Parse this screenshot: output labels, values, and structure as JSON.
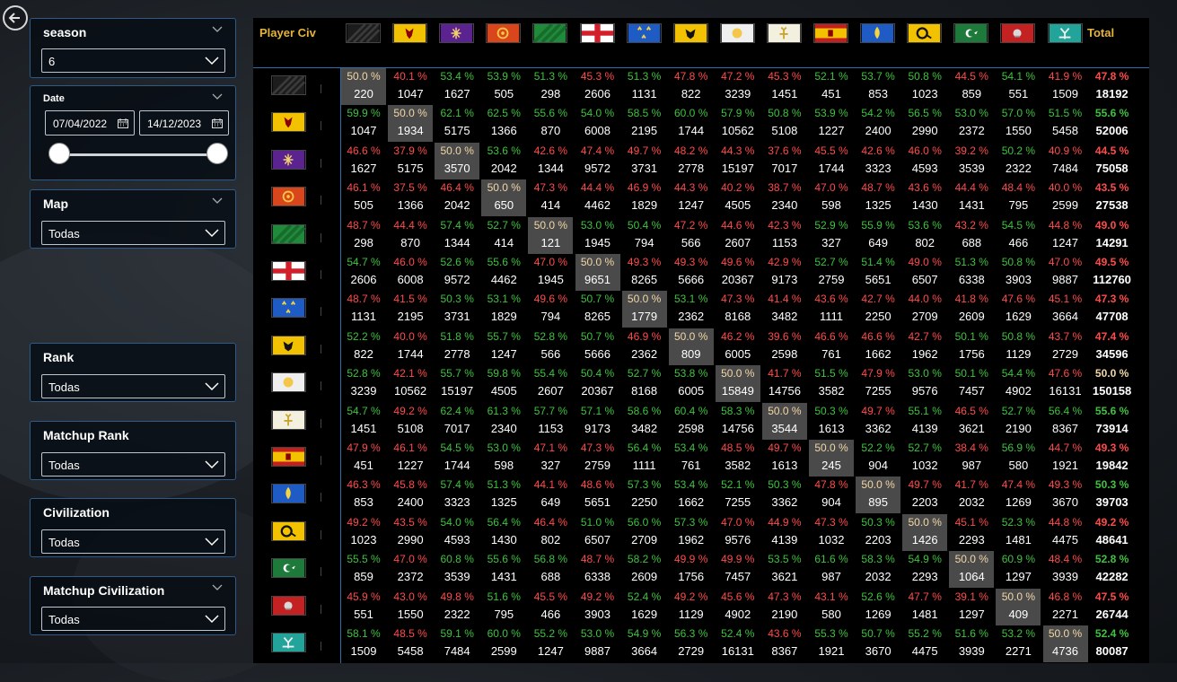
{
  "colors": {
    "win": "#3fc23f",
    "lose": "#ff4b4b",
    "even": "#f2d7a6",
    "accent": "#e6b43a"
  },
  "filters": {
    "season": {
      "title": "season",
      "value": "6"
    },
    "date": {
      "title": "Date",
      "start": "07/04/2022",
      "end": "14/12/2023"
    },
    "map": {
      "title": "Map",
      "value": "Todas"
    },
    "rank": {
      "title": "Rank",
      "value": "Todas"
    },
    "matchup_rank": {
      "title": "Matchup Rank",
      "value": "Todas"
    },
    "civilization": {
      "title": "Civilization",
      "value": "Todas"
    },
    "matchup_civilization": {
      "title": "Matchup Civilization",
      "value": "Todas"
    }
  },
  "matrix": {
    "header_label": "Player Civ",
    "total_label": "Total",
    "civs": [
      "Abbasid-black",
      "Holy Roman Empire",
      "Byzantines",
      "Chinese",
      "Delhi",
      "English",
      "French",
      "HRE-eagle",
      "Ayyubids",
      "Jeanne",
      "Malians",
      "Mongols",
      "Order of the Dragon",
      "Ottomans",
      "Rus",
      "Japanese"
    ],
    "rows": [
      {
        "pct": [
          "50.0 %",
          "40.1 %",
          "53.4 %",
          "53.9 %",
          "51.3 %",
          "45.3 %",
          "51.3 %",
          "47.8 %",
          "47.2 %",
          "45.3 %",
          "52.1 %",
          "53.7 %",
          "50.8 %",
          "44.5 %",
          "54.1 %",
          "41.9 %"
        ],
        "cnt": [
          "220",
          "1047",
          "1627",
          "505",
          "298",
          "2606",
          "1131",
          "822",
          "3239",
          "1451",
          "451",
          "853",
          "1023",
          "859",
          "551",
          "1509"
        ],
        "total_pct": "47.8 %",
        "total_cnt": "18192"
      },
      {
        "pct": [
          "59.9 %",
          "50.0 %",
          "62.1 %",
          "62.5 %",
          "55.6 %",
          "54.0 %",
          "58.5 %",
          "60.0 %",
          "57.9 %",
          "50.8 %",
          "53.9 %",
          "54.2 %",
          "56.5 %",
          "53.0 %",
          "57.0 %",
          "51.5 %"
        ],
        "cnt": [
          "1047",
          "1934",
          "5175",
          "1366",
          "870",
          "6008",
          "2195",
          "1744",
          "10562",
          "5108",
          "1227",
          "2400",
          "2990",
          "2372",
          "1550",
          "5458"
        ],
        "total_pct": "55.6 %",
        "total_cnt": "52006"
      },
      {
        "pct": [
          "46.6 %",
          "37.9 %",
          "50.0 %",
          "53.6 %",
          "42.6 %",
          "47.4 %",
          "49.7 %",
          "48.2 %",
          "44.3 %",
          "37.6 %",
          "45.5 %",
          "42.6 %",
          "46.0 %",
          "39.2 %",
          "50.2 %",
          "40.9 %"
        ],
        "cnt": [
          "1627",
          "5175",
          "3570",
          "2042",
          "1344",
          "9572",
          "3731",
          "2778",
          "15197",
          "7017",
          "1744",
          "3323",
          "4593",
          "3539",
          "2322",
          "7484"
        ],
        "total_pct": "44.5 %",
        "total_cnt": "75058"
      },
      {
        "pct": [
          "46.1 %",
          "37.5 %",
          "46.4 %",
          "50.0 %",
          "47.3 %",
          "44.4 %",
          "46.9 %",
          "44.3 %",
          "40.2 %",
          "38.7 %",
          "47.0 %",
          "48.7 %",
          "43.6 %",
          "44.4 %",
          "48.4 %",
          "40.0 %"
        ],
        "cnt": [
          "505",
          "1366",
          "2042",
          "650",
          "414",
          "4462",
          "1829",
          "1247",
          "4505",
          "2340",
          "598",
          "1325",
          "1430",
          "1431",
          "795",
          "2599"
        ],
        "total_pct": "43.5 %",
        "total_cnt": "27538"
      },
      {
        "pct": [
          "48.7 %",
          "44.4 %",
          "57.4 %",
          "52.7 %",
          "50.0 %",
          "53.0 %",
          "50.4 %",
          "47.2 %",
          "44.6 %",
          "42.3 %",
          "52.9 %",
          "55.9 %",
          "53.6 %",
          "43.2 %",
          "54.5 %",
          "44.8 %"
        ],
        "cnt": [
          "298",
          "870",
          "1344",
          "414",
          "121",
          "1945",
          "794",
          "566",
          "2607",
          "1153",
          "327",
          "649",
          "802",
          "688",
          "466",
          "1247"
        ],
        "total_pct": "49.0 %",
        "total_cnt": "14291"
      },
      {
        "pct": [
          "54.7 %",
          "46.0 %",
          "52.6 %",
          "55.6 %",
          "47.0 %",
          "50.0 %",
          "49.3 %",
          "49.3 %",
          "49.6 %",
          "42.9 %",
          "52.7 %",
          "51.4 %",
          "49.0 %",
          "51.3 %",
          "50.8 %",
          "47.0 %"
        ],
        "cnt": [
          "2606",
          "6008",
          "9572",
          "4462",
          "1945",
          "9651",
          "8265",
          "5666",
          "20367",
          "9173",
          "2759",
          "5651",
          "6507",
          "6338",
          "3903",
          "9887"
        ],
        "total_pct": "49.5 %",
        "total_cnt": "112760"
      },
      {
        "pct": [
          "48.7 %",
          "41.5 %",
          "50.3 %",
          "53.1 %",
          "49.6 %",
          "50.7 %",
          "50.0 %",
          "53.1 %",
          "47.3 %",
          "41.4 %",
          "43.6 %",
          "42.7 %",
          "44.0 %",
          "41.8 %",
          "47.6 %",
          "45.1 %"
        ],
        "cnt": [
          "1131",
          "2195",
          "3731",
          "1829",
          "794",
          "8265",
          "1779",
          "2362",
          "8168",
          "3482",
          "1111",
          "2250",
          "2709",
          "2609",
          "1629",
          "3664"
        ],
        "total_pct": "47.3 %",
        "total_cnt": "47708"
      },
      {
        "pct": [
          "52.2 %",
          "40.0 %",
          "51.8 %",
          "55.7 %",
          "52.8 %",
          "50.7 %",
          "46.9 %",
          "50.0 %",
          "46.2 %",
          "39.6 %",
          "46.6 %",
          "46.6 %",
          "42.7 %",
          "50.1 %",
          "50.8 %",
          "43.7 %"
        ],
        "cnt": [
          "822",
          "1744",
          "2778",
          "1247",
          "566",
          "5666",
          "2362",
          "809",
          "6005",
          "2598",
          "761",
          "1662",
          "1962",
          "1756",
          "1129",
          "2729"
        ],
        "total_pct": "47.4 %",
        "total_cnt": "34596"
      },
      {
        "pct": [
          "52.8 %",
          "42.1 %",
          "55.7 %",
          "59.8 %",
          "55.4 %",
          "50.4 %",
          "52.7 %",
          "53.8 %",
          "50.0 %",
          "41.7 %",
          "51.5 %",
          "47.9 %",
          "53.0 %",
          "50.1 %",
          "54.4 %",
          "47.6 %"
        ],
        "cnt": [
          "3239",
          "10562",
          "15197",
          "4505",
          "2607",
          "20367",
          "8168",
          "6005",
          "15849",
          "14756",
          "3582",
          "7255",
          "9576",
          "7457",
          "4902",
          "16131"
        ],
        "total_pct": "50.0 %",
        "total_cnt": "150158"
      },
      {
        "pct": [
          "54.7 %",
          "49.2 %",
          "62.4 %",
          "61.3 %",
          "57.7 %",
          "57.1 %",
          "58.6 %",
          "60.4 %",
          "58.3 %",
          "50.0 %",
          "50.3 %",
          "49.7 %",
          "55.1 %",
          "46.5 %",
          "52.7 %",
          "56.4 %"
        ],
        "cnt": [
          "1451",
          "5108",
          "7017",
          "2340",
          "1153",
          "9173",
          "3482",
          "2598",
          "14756",
          "3544",
          "1613",
          "3362",
          "4139",
          "3621",
          "2190",
          "8367"
        ],
        "total_pct": "55.6 %",
        "total_cnt": "73914"
      },
      {
        "pct": [
          "47.9 %",
          "46.1 %",
          "54.5 %",
          "53.0 %",
          "47.1 %",
          "47.3 %",
          "56.4 %",
          "53.4 %",
          "48.5 %",
          "49.7 %",
          "50.0 %",
          "52.2 %",
          "52.7 %",
          "38.4 %",
          "56.9 %",
          "44.7 %"
        ],
        "cnt": [
          "451",
          "1227",
          "1744",
          "598",
          "327",
          "2759",
          "1111",
          "761",
          "3582",
          "1613",
          "245",
          "904",
          "1032",
          "987",
          "580",
          "1921"
        ],
        "total_pct": "49.3 %",
        "total_cnt": "19842"
      },
      {
        "pct": [
          "46.3 %",
          "45.8 %",
          "57.4 %",
          "51.3 %",
          "44.1 %",
          "48.6 %",
          "57.3 %",
          "53.4 %",
          "52.1 %",
          "50.3 %",
          "47.8 %",
          "50.0 %",
          "49.7 %",
          "41.7 %",
          "47.4 %",
          "49.3 %"
        ],
        "cnt": [
          "853",
          "2400",
          "3323",
          "1325",
          "649",
          "5651",
          "2250",
          "1662",
          "7255",
          "3362",
          "904",
          "895",
          "2203",
          "2032",
          "1269",
          "3670"
        ],
        "total_pct": "50.3 %",
        "total_cnt": "39703"
      },
      {
        "pct": [
          "49.2 %",
          "43.5 %",
          "54.0 %",
          "56.4 %",
          "46.4 %",
          "51.0 %",
          "56.0 %",
          "57.3 %",
          "47.0 %",
          "44.9 %",
          "47.3 %",
          "50.3 %",
          "50.0 %",
          "45.1 %",
          "52.3 %",
          "44.8 %"
        ],
        "cnt": [
          "1023",
          "2990",
          "4593",
          "1430",
          "802",
          "6507",
          "2709",
          "1962",
          "9576",
          "4139",
          "1032",
          "2203",
          "1426",
          "2293",
          "1481",
          "4475"
        ],
        "total_pct": "49.2 %",
        "total_cnt": "48641"
      },
      {
        "pct": [
          "55.5 %",
          "47.0 %",
          "60.8 %",
          "55.6 %",
          "56.8 %",
          "48.7 %",
          "58.2 %",
          "49.9 %",
          "49.9 %",
          "53.5 %",
          "61.6 %",
          "58.3 %",
          "54.9 %",
          "50.0 %",
          "60.9 %",
          "48.4 %"
        ],
        "cnt": [
          "859",
          "2372",
          "3539",
          "1431",
          "688",
          "6338",
          "2609",
          "1756",
          "7457",
          "3621",
          "987",
          "2032",
          "2293",
          "1064",
          "1297",
          "3939"
        ],
        "total_pct": "52.8 %",
        "total_cnt": "42282"
      },
      {
        "pct": [
          "45.9 %",
          "43.0 %",
          "49.8 %",
          "51.6 %",
          "45.5 %",
          "49.2 %",
          "52.4 %",
          "49.2 %",
          "45.6 %",
          "47.3 %",
          "43.1 %",
          "52.6 %",
          "47.7 %",
          "39.1 %",
          "50.0 %",
          "46.8 %"
        ],
        "cnt": [
          "551",
          "1550",
          "2322",
          "795",
          "466",
          "3903",
          "1629",
          "1129",
          "4902",
          "2190",
          "580",
          "1269",
          "1481",
          "1297",
          "409",
          "2271"
        ],
        "total_pct": "47.5 %",
        "total_cnt": "26744"
      },
      {
        "pct": [
          "58.1 %",
          "48.5 %",
          "59.1 %",
          "60.0 %",
          "55.2 %",
          "53.0 %",
          "54.9 %",
          "56.3 %",
          "52.4 %",
          "43.6 %",
          "55.3 %",
          "50.7 %",
          "55.2 %",
          "51.6 %",
          "53.2 %",
          "50.0 %"
        ],
        "cnt": [
          "1509",
          "5458",
          "7484",
          "2599",
          "1247",
          "9887",
          "3664",
          "2729",
          "16131",
          "8367",
          "1921",
          "3670",
          "4475",
          "3939",
          "2271",
          "4736"
        ],
        "total_pct": "52.4 %",
        "total_cnt": "80087"
      }
    ]
  }
}
